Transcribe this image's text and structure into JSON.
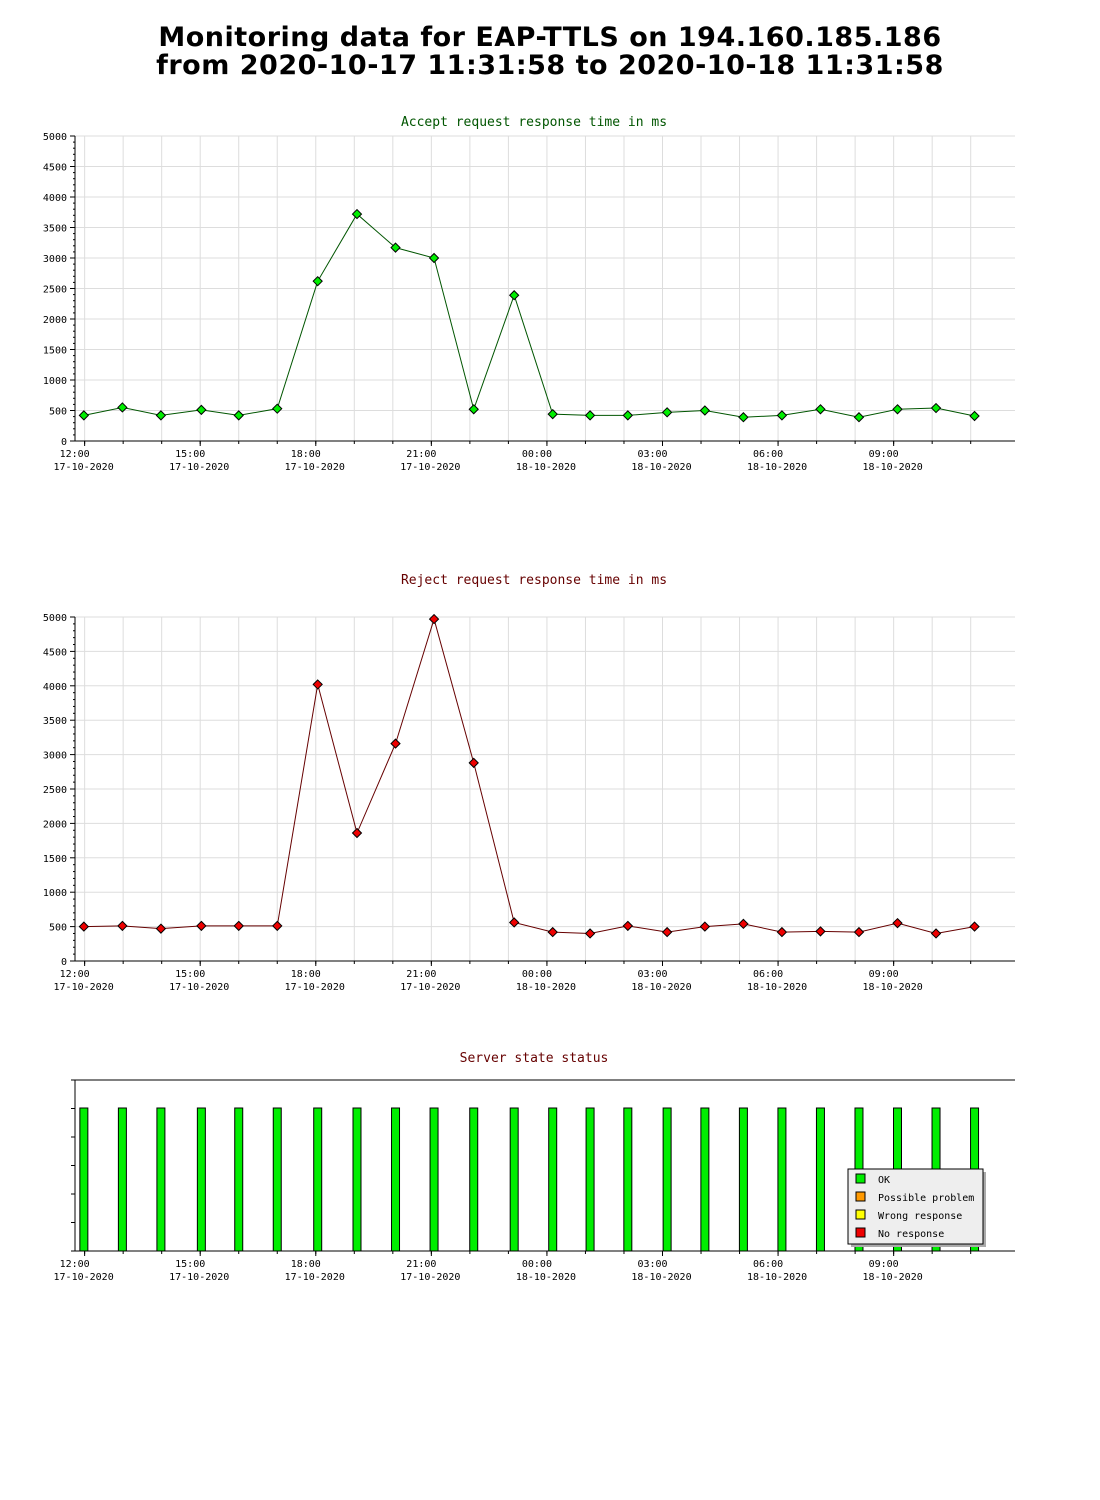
{
  "header": {
    "title_line1": "Monitoring data for EAP-TTLS on 194.160.185.186",
    "title_line2": "from 2020-10-17 11:31:58 to 2020-10-18 11:31:58"
  },
  "x_ticks": [
    {
      "time": "12:00",
      "date": "17-10-2020",
      "hour": 12
    },
    {
      "time": "15:00",
      "date": "17-10-2020",
      "hour": 15
    },
    {
      "time": "18:00",
      "date": "17-10-2020",
      "hour": 18
    },
    {
      "time": "21:00",
      "date": "17-10-2020",
      "hour": 21
    },
    {
      "time": "00:00",
      "date": "18-10-2020",
      "hour": 24
    },
    {
      "time": "03:00",
      "date": "18-10-2020",
      "hour": 27
    },
    {
      "time": "06:00",
      "date": "18-10-2020",
      "hour": 30
    },
    {
      "time": "09:00",
      "date": "18-10-2020",
      "hour": 33
    }
  ],
  "colors": {
    "accept_line": "#005500",
    "accept_marker": "#00ee00",
    "reject_line": "#660000",
    "reject_marker": "#ee0000",
    "accept_title": "#005500",
    "reject_title": "#660000",
    "status_title": "#660000",
    "ok": "#00ee00",
    "possible_problem": "#ff9900",
    "wrong_response": "#ffff00",
    "no_response": "#ee0000",
    "grid": "#dddddd"
  },
  "chart_data": [
    {
      "type": "line",
      "title": "Accept request response time in ms",
      "ylim": [
        0,
        5000
      ],
      "yticks": [
        0,
        500,
        1000,
        1500,
        2000,
        2500,
        3000,
        3500,
        4000,
        4500,
        5000
      ],
      "x_hours": [
        11.98,
        12.98,
        13.98,
        15.03,
        16.0,
        17.0,
        18.05,
        19.07,
        20.07,
        21.07,
        22.1,
        23.15,
        24.15,
        25.12,
        26.1,
        27.12,
        28.1,
        29.1,
        30.1,
        31.1,
        32.1,
        33.1,
        34.1,
        35.1
      ],
      "values": [
        420,
        550,
        420,
        510,
        420,
        530,
        2620,
        3720,
        3170,
        3000,
        520,
        2390,
        440,
        420,
        420,
        470,
        500,
        390,
        420,
        520,
        390,
        520,
        540,
        410
      ]
    },
    {
      "type": "line",
      "title": "Reject request response time in ms",
      "ylim": [
        0,
        5000
      ],
      "yticks": [
        0,
        500,
        1000,
        1500,
        2000,
        2500,
        3000,
        3500,
        4000,
        4500,
        5000
      ],
      "x_hours": [
        11.98,
        12.98,
        13.98,
        15.03,
        16.0,
        17.0,
        18.05,
        19.07,
        20.07,
        21.07,
        22.1,
        23.15,
        24.15,
        25.12,
        26.1,
        27.12,
        28.1,
        29.1,
        30.1,
        31.1,
        32.1,
        33.1,
        34.1,
        35.1
      ],
      "values": [
        500,
        510,
        470,
        510,
        510,
        510,
        4020,
        1860,
        3160,
        4970,
        2880,
        560,
        420,
        400,
        510,
        420,
        500,
        540,
        420,
        430,
        420,
        550,
        400,
        500
      ]
    },
    {
      "type": "bar",
      "title": "Server state status",
      "x_hours": [
        11.98,
        12.98,
        13.98,
        15.03,
        16.0,
        17.0,
        18.05,
        19.07,
        20.07,
        21.07,
        22.1,
        23.15,
        24.15,
        25.12,
        26.1,
        27.12,
        28.1,
        29.1,
        30.1,
        31.1,
        32.1,
        33.1,
        34.1,
        35.1
      ],
      "status": [
        "OK",
        "OK",
        "OK",
        "OK",
        "OK",
        "OK",
        "OK",
        "OK",
        "OK",
        "OK",
        "OK",
        "OK",
        "OK",
        "OK",
        "OK",
        "OK",
        "OK",
        "OK",
        "OK",
        "OK",
        "OK",
        "OK",
        "OK",
        "OK"
      ],
      "legend": [
        "OK",
        "Possible problem",
        "Wrong response",
        "No response"
      ],
      "legend_placement": "bottom-right"
    }
  ]
}
